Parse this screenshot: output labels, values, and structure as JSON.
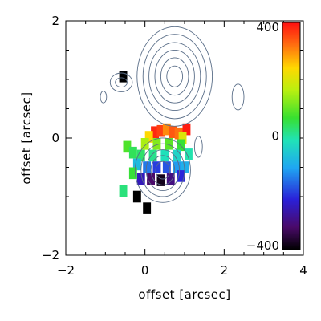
{
  "chart_data": {
    "type": "heatmap",
    "title": "",
    "xlabel": "offset [arcsec]",
    "ylabel": "offset [arcsec]",
    "xlim": [
      -2,
      4
    ],
    "ylim": [
      -2,
      2
    ],
    "x_ticks": [
      -2,
      0,
      2,
      4
    ],
    "y_ticks": [
      -2,
      0,
      2
    ],
    "x_tick_labels": [
      "−2",
      "0",
      "2",
      "4"
    ],
    "y_tick_labels": [
      "−2",
      "0",
      "2"
    ],
    "colorbar": {
      "range": [
        -400,
        400
      ],
      "ticks": [
        400,
        0,
        -400
      ],
      "tick_labels": [
        "400",
        "0",
        "−400"
      ],
      "colormap": "rainbow (black–purple–blue–cyan–green–yellow–red)"
    },
    "velocity_field": {
      "description": "pixels in arcsec offset space with values in colorbar units",
      "pixels": [
        {
          "x": 0.25,
          "y": 0.1,
          "v": 380
        },
        {
          "x": 0.4,
          "y": 0.12,
          "v": 360
        },
        {
          "x": 0.55,
          "y": 0.15,
          "v": 300
        },
        {
          "x": 0.7,
          "y": 0.1,
          "v": 340
        },
        {
          "x": 0.85,
          "y": 0.08,
          "v": 320
        },
        {
          "x": 1.05,
          "y": 0.15,
          "v": 390
        },
        {
          "x": 0.1,
          "y": 0.02,
          "v": 240
        },
        {
          "x": 0.95,
          "y": 0.0,
          "v": 200
        },
        {
          "x": 0.0,
          "y": -0.1,
          "v": 150
        },
        {
          "x": 0.3,
          "y": -0.1,
          "v": 120
        },
        {
          "x": 0.6,
          "y": -0.1,
          "v": 90
        },
        {
          "x": 0.9,
          "y": -0.12,
          "v": 60
        },
        {
          "x": -0.45,
          "y": -0.15,
          "v": 80
        },
        {
          "x": -0.3,
          "y": -0.25,
          "v": 40
        },
        {
          "x": -0.1,
          "y": -0.3,
          "v": 30
        },
        {
          "x": 0.2,
          "y": -0.3,
          "v": 10
        },
        {
          "x": 0.5,
          "y": -0.3,
          "v": -20
        },
        {
          "x": 0.8,
          "y": -0.3,
          "v": -40
        },
        {
          "x": 1.1,
          "y": -0.28,
          "v": -10
        },
        {
          "x": -0.2,
          "y": -0.45,
          "v": -80
        },
        {
          "x": 0.05,
          "y": -0.5,
          "v": -150
        },
        {
          "x": 0.3,
          "y": -0.5,
          "v": -200
        },
        {
          "x": 0.55,
          "y": -0.5,
          "v": -180
        },
        {
          "x": 0.8,
          "y": -0.5,
          "v": -120
        },
        {
          "x": 1.0,
          "y": -0.5,
          "v": -100
        },
        {
          "x": -0.1,
          "y": -0.7,
          "v": -250
        },
        {
          "x": 0.15,
          "y": -0.7,
          "v": -320
        },
        {
          "x": 0.4,
          "y": -0.72,
          "v": -380
        },
        {
          "x": 0.65,
          "y": -0.7,
          "v": -300
        },
        {
          "x": 0.9,
          "y": -0.65,
          "v": -220
        },
        {
          "x": -0.3,
          "y": -0.6,
          "v": 60
        },
        {
          "x": -0.55,
          "y": -0.9,
          "v": 20
        },
        {
          "x": -0.2,
          "y": -1.0,
          "v": -400
        },
        {
          "x": 0.05,
          "y": -1.2,
          "v": -400
        },
        {
          "x": -0.55,
          "y": 1.05,
          "v": -400
        }
      ]
    },
    "contours": {
      "description": "flux contour levels (arbitrary), drawn as closed loops",
      "components": [
        {
          "name": "",
          "center": [
            0.75,
            1.05
          ],
          "radii": [
            [
              0.95,
              0.85
            ],
            [
              0.8,
              0.72
            ],
            [
              0.65,
              0.58
            ],
            [
              0.5,
              0.45
            ],
            [
              0.35,
              0.32
            ],
            [
              0.2,
              0.18
            ]
          ]
        },
        {
          "name": "",
          "center": [
            0.45,
            -0.55
          ],
          "radii": [
            [
              0.7,
              0.55
            ],
            [
              0.55,
              0.45
            ],
            [
              0.42,
              0.35
            ],
            [
              0.3,
              0.25
            ],
            [
              0.18,
              0.15
            ]
          ]
        },
        {
          "name": "",
          "center": [
            -0.6,
            0.95
          ],
          "radii": [
            [
              0.28,
              0.16
            ],
            [
              0.15,
              0.08
            ]
          ]
        },
        {
          "name": "",
          "center": [
            2.35,
            0.7
          ],
          "radii": [
            [
              0.15,
              0.22
            ]
          ]
        },
        {
          "name": "",
          "center": [
            -1.05,
            0.7
          ],
          "radii": [
            [
              0.08,
              0.1
            ]
          ]
        },
        {
          "name": "",
          "center": [
            1.35,
            -0.15
          ],
          "radii": [
            [
              0.1,
              0.18
            ]
          ]
        }
      ]
    }
  }
}
